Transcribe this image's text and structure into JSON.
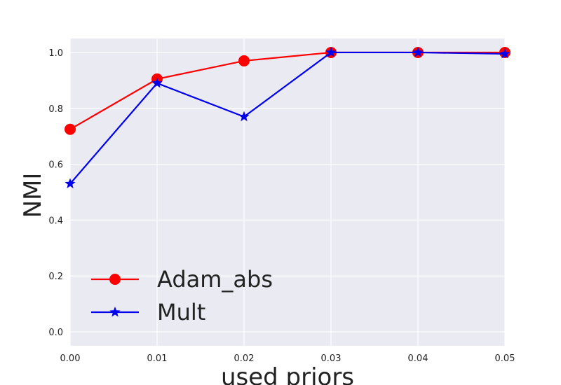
{
  "chart_data": {
    "type": "line",
    "title": "",
    "xlabel": "used priors",
    "ylabel": "NMI",
    "x": [
      0.0,
      0.01,
      0.02,
      0.03,
      0.04,
      0.05
    ],
    "x_ticks": [
      "0.00",
      "0.01",
      "0.02",
      "0.03",
      "0.04",
      "0.05"
    ],
    "y_ticks": [
      "0.0",
      "0.2",
      "0.4",
      "0.6",
      "0.8",
      "1.0"
    ],
    "xlim": [
      0.0,
      0.05
    ],
    "ylim": [
      -0.05,
      1.05
    ],
    "grid": true,
    "legend_position": "lower-left",
    "background_color": "#eaeaf2",
    "series": [
      {
        "name": "Adam_abs",
        "color": "#ff0000",
        "marker": "circle",
        "values": [
          0.725,
          0.905,
          0.97,
          1.0,
          1.0,
          1.0
        ]
      },
      {
        "name": "Mult",
        "color": "#0000ee",
        "marker": "star",
        "values": [
          0.53,
          0.89,
          0.77,
          1.0,
          1.0,
          0.995
        ]
      }
    ]
  }
}
